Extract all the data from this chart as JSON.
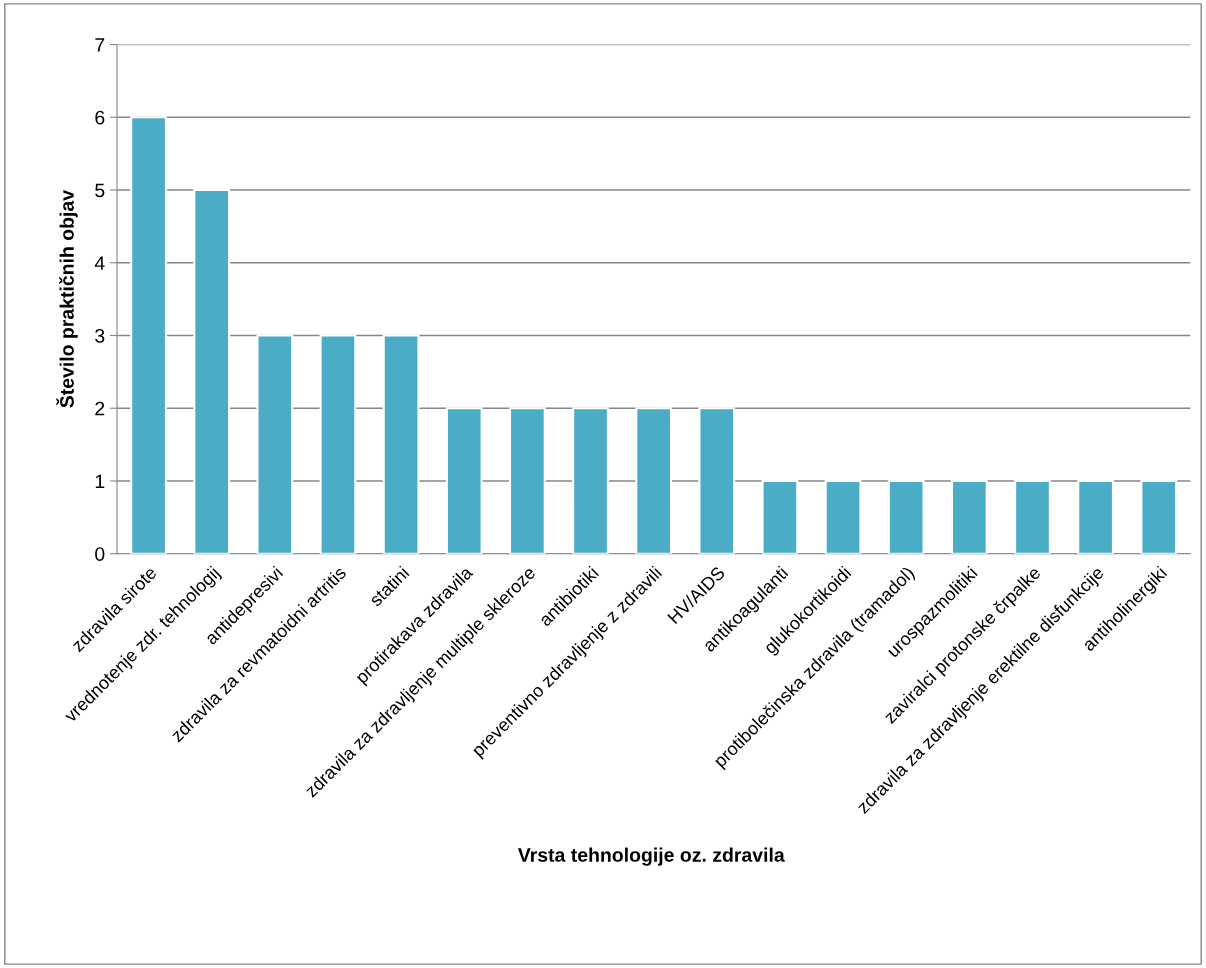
{
  "chart_data": {
    "type": "bar",
    "xlabel": "Vrsta tehnologije oz. zdravila",
    "ylabel": "Število praktičnih objav",
    "categories": [
      "zdravila sirote",
      "vrednotenje zdr. tehnologij",
      "antidepresivi",
      "zdravila za revmatoidni artritis",
      "statini",
      "protirakava zdravila",
      "zdravila za zdravljenje multiple skleroze",
      "antibiotiki",
      "preventivno zdravljenje z zdravili",
      "HV/AIDS",
      "antikoagulanti",
      "glukokortikoidi",
      "protibolečinska zdravila (tramadol)",
      "urospazmolitiki",
      "zaviralci protonske črpalke",
      "zdravila za zdravljenje erektilne disfunkcije",
      "antiholinergiki"
    ],
    "values": [
      6,
      5,
      3,
      3,
      3,
      2,
      2,
      2,
      2,
      2,
      1,
      1,
      1,
      1,
      1,
      1,
      1
    ],
    "color": "#4bacc6",
    "ylim": [
      0,
      7
    ],
    "yticks": [
      0,
      1,
      2,
      3,
      4,
      5,
      6,
      7
    ],
    "grid": "y"
  }
}
